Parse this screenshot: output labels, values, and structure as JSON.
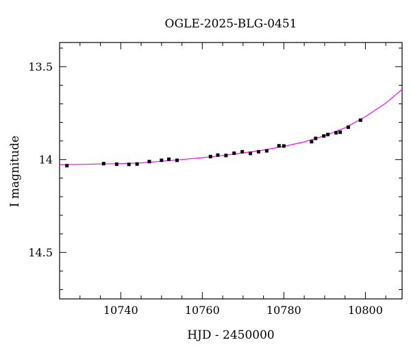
{
  "chart_data": {
    "type": "scatter",
    "title": "OGLE-2025-BLG-0451",
    "xlabel": "HJD - 2450000",
    "ylabel": "I magnitude",
    "xlim": [
      10725,
      10809
    ],
    "ylim": [
      14.75,
      13.37
    ],
    "y_inverted": true,
    "grid": false,
    "x_ticks": [
      10740,
      10760,
      10780,
      10800
    ],
    "x_tick_labels": [
      "10740",
      "10760",
      "10780",
      "10800"
    ],
    "y_ticks": [
      13.5,
      14,
      14.5
    ],
    "y_tick_labels": [
      "13.5",
      "14",
      "14.5"
    ],
    "series": [
      {
        "kind": "points",
        "color": "#000000",
        "points": [
          {
            "x": 10726.8,
            "y": 14.033,
            "err": 0.008
          },
          {
            "x": 10735.8,
            "y": 14.022,
            "err": 0.008
          },
          {
            "x": 10739.0,
            "y": 14.025,
            "err": 0.008
          },
          {
            "x": 10742.0,
            "y": 14.026,
            "err": 0.008
          },
          {
            "x": 10744.0,
            "y": 14.024,
            "err": 0.008
          },
          {
            "x": 10747.0,
            "y": 14.011,
            "err": 0.008
          },
          {
            "x": 10750.0,
            "y": 14.004,
            "err": 0.008
          },
          {
            "x": 10751.8,
            "y": 13.998,
            "err": 0.008
          },
          {
            "x": 10753.8,
            "y": 14.004,
            "err": 0.008
          },
          {
            "x": 10762.0,
            "y": 13.984,
            "err": 0.008
          },
          {
            "x": 10763.8,
            "y": 13.976,
            "err": 0.008
          },
          {
            "x": 10765.8,
            "y": 13.978,
            "err": 0.008
          },
          {
            "x": 10767.8,
            "y": 13.966,
            "err": 0.008
          },
          {
            "x": 10769.8,
            "y": 13.958,
            "err": 0.008
          },
          {
            "x": 10771.8,
            "y": 13.967,
            "err": 0.008
          },
          {
            "x": 10773.8,
            "y": 13.958,
            "err": 0.008
          },
          {
            "x": 10775.8,
            "y": 13.953,
            "err": 0.008
          },
          {
            "x": 10778.8,
            "y": 13.926,
            "err": 0.008
          },
          {
            "x": 10780.0,
            "y": 13.927,
            "err": 0.008
          },
          {
            "x": 10786.8,
            "y": 13.904,
            "err": 0.008
          },
          {
            "x": 10787.8,
            "y": 13.886,
            "err": 0.008
          },
          {
            "x": 10789.8,
            "y": 13.873,
            "err": 0.008
          },
          {
            "x": 10790.8,
            "y": 13.865,
            "err": 0.008
          },
          {
            "x": 10792.8,
            "y": 13.856,
            "err": 0.008
          },
          {
            "x": 10793.8,
            "y": 13.853,
            "err": 0.008
          },
          {
            "x": 10795.8,
            "y": 13.826,
            "err": 0.008
          },
          {
            "x": 10798.8,
            "y": 13.788,
            "err": 0.008
          }
        ]
      },
      {
        "kind": "line",
        "color": "#ff00ff",
        "points": [
          {
            "x": 10725,
            "y": 14.027
          },
          {
            "x": 10730,
            "y": 14.026
          },
          {
            "x": 10735,
            "y": 14.024
          },
          {
            "x": 10740,
            "y": 14.022
          },
          {
            "x": 10745,
            "y": 14.018
          },
          {
            "x": 10750,
            "y": 14.009
          },
          {
            "x": 10755,
            "y": 14.0
          },
          {
            "x": 10760,
            "y": 13.99
          },
          {
            "x": 10765,
            "y": 13.978
          },
          {
            "x": 10770,
            "y": 13.964
          },
          {
            "x": 10775,
            "y": 13.949
          },
          {
            "x": 10780,
            "y": 13.929
          },
          {
            "x": 10785,
            "y": 13.905
          },
          {
            "x": 10790,
            "y": 13.872
          },
          {
            "x": 10795,
            "y": 13.829
          },
          {
            "x": 10800,
            "y": 13.769
          },
          {
            "x": 10805,
            "y": 13.696
          },
          {
            "x": 10809,
            "y": 13.622
          }
        ]
      }
    ]
  }
}
